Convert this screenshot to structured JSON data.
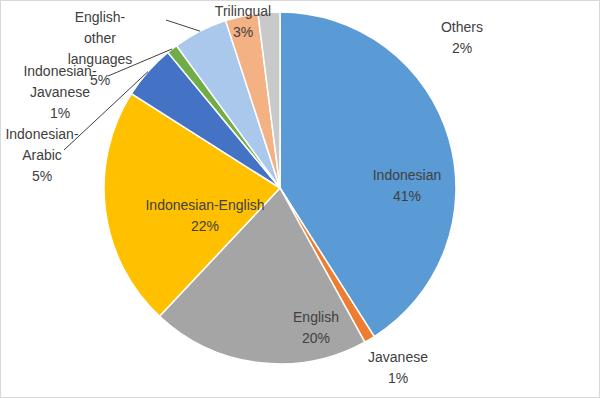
{
  "chart_data": {
    "type": "pie",
    "categories": [
      "Indonesian",
      "Javanese",
      "English",
      "Indonesian-English",
      "Indonesian-Arabic",
      "Indonesian-Javanese",
      "English-other languages",
      "Trilingual",
      "Others"
    ],
    "values": [
      41,
      1,
      20,
      22,
      5,
      1,
      5,
      3,
      2
    ],
    "value_labels": [
      "41%",
      "1%",
      "20%",
      "22%",
      "5%",
      "1%",
      "5%",
      "3%",
      "2%"
    ],
    "colors": [
      "#5b9bd5",
      "#ed7d31",
      "#a5a5a5",
      "#ffc000",
      "#4472c4",
      "#70ad47",
      "#a9c8ec",
      "#f4b183",
      "#c9c9c9"
    ],
    "data_labels": true
  }
}
